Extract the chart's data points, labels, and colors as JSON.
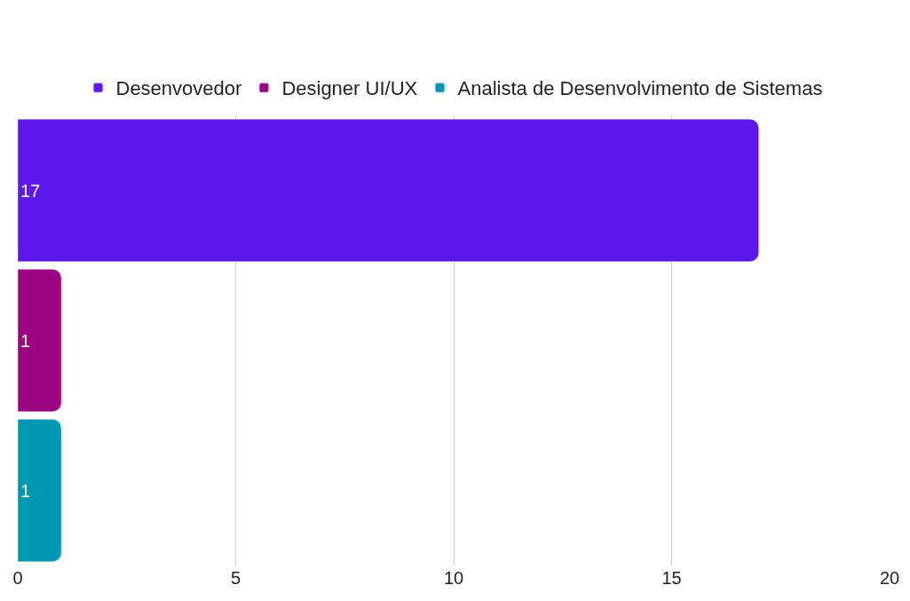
{
  "chart_data": {
    "type": "bar",
    "orientation": "horizontal",
    "categories": [
      null,
      null,
      null
    ],
    "series": [
      {
        "name": "Desenvovedor",
        "color": "#5e17eb",
        "values": [
          17,
          null,
          null
        ]
      },
      {
        "name": "Designer UI/UX",
        "color": "#9c0481",
        "values": [
          null,
          1,
          null
        ]
      },
      {
        "name": "Analista de Desenvolvimento de Sistemas",
        "color": "#0097b2",
        "values": [
          null,
          null,
          1
        ]
      }
    ],
    "xlim": [
      0,
      20
    ],
    "xticks": [
      0,
      5,
      10,
      15,
      20
    ],
    "grid": "x",
    "legend": "top",
    "data_labels": true,
    "tick_labels": "x"
  }
}
